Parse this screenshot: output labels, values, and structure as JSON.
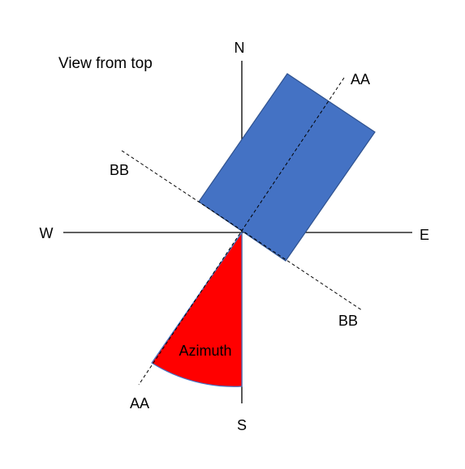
{
  "diagram": {
    "title": "View from top",
    "compass": {
      "north": "N",
      "south": "S",
      "east": "E",
      "west": "W"
    },
    "axes": {
      "aa_top": "AA",
      "aa_bottom": "AA",
      "bb_left": "BB",
      "bb_right": "BB"
    },
    "sector_label": "Azimuth",
    "colors": {
      "panel_fill": "#4472C4",
      "panel_stroke": "#2F528F",
      "sector_fill": "#FF0000",
      "sector_stroke": "#4472C4",
      "line": "#000000",
      "background": "#FFFFFF"
    }
  }
}
